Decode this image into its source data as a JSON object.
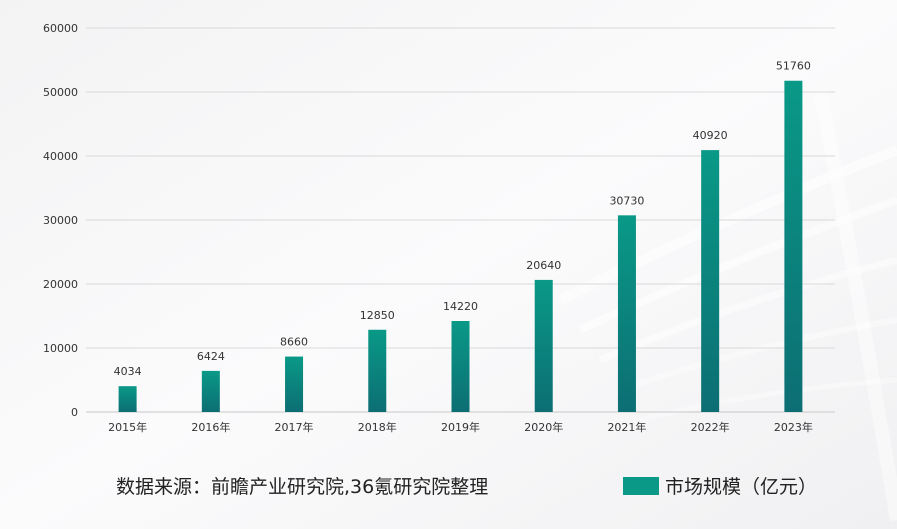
{
  "chart_data": {
    "type": "bar",
    "categories": [
      "2015年",
      "2016年",
      "2017年",
      "2018年",
      "2019年",
      "2020年",
      "2021年",
      "2022年",
      "2023年"
    ],
    "series": [
      {
        "name": "市场规模（亿元）",
        "values": [
          4034,
          6424,
          8660,
          12850,
          14220,
          20640,
          30730,
          40920,
          51760
        ],
        "color": "#0a9987"
      }
    ],
    "data_labels": [
      "4034",
      "6424",
      "8660",
      "12850",
      "14220",
      "20640",
      "30730",
      "40920",
      "51760"
    ],
    "y_ticks": [
      0,
      10000,
      20000,
      30000,
      40000,
      50000,
      60000
    ],
    "ylim": [
      0,
      60000
    ],
    "grid": true,
    "legend_position": "bottom-right",
    "title": "",
    "xlabel": "",
    "ylabel": ""
  },
  "footer": {
    "source_text": "数据来源：前瞻产业研究院,36氪研究院整理"
  },
  "colors": {
    "bar_top": "#0a9987",
    "bar_bottom": "#0c6e73",
    "grid": "#d9d9d9",
    "axis_text": "#333333",
    "background": "#f7f7f8"
  }
}
